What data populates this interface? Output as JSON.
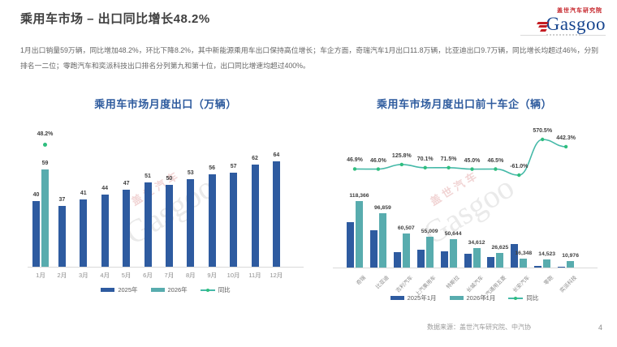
{
  "page": {
    "title": "乘用车市场 – 出口同比增长48.2%",
    "summary": "1月出口销量59万辆，同比增加48.2%，环比下降8.2%，其中新能源乘用车出口保持高位增长；车企方面，奇瑞汽车1月出口11.8万辆，比亚迪出口9.7万辆，同比增长均超过46%，分别排名一二位；零跑汽车和奕派科技出口排名分列第九和第十位，出口同比增速均超过400%。",
    "footer_source": "数据来源：盖世汽车研究院、中汽协",
    "page_number": "4"
  },
  "logo": {
    "institute": "盖世汽车研究院",
    "brand": "Gasgoo"
  },
  "watermark": {
    "cn": "盖世汽车",
    "en": "Gasgoo"
  },
  "colors": {
    "bar_2025": "#2e5ba0",
    "bar_2026": "#58acae",
    "line": "#45b9a8",
    "marker": "#2fbe7e",
    "chart_title": "#2e5b9e"
  },
  "chart_data": [
    {
      "type": "bar",
      "title": "乘用车市场月度出口（万辆）",
      "categories": [
        "1月",
        "2月",
        "3月",
        "4月",
        "5月",
        "6月",
        "7月",
        "8月",
        "9月",
        "10月",
        "11月",
        "12月"
      ],
      "series": [
        {
          "name": "2025年",
          "type": "bar",
          "color": "#2e5ba0",
          "values": [
            40,
            37,
            41,
            44,
            47,
            51,
            50,
            53,
            56,
            57,
            62,
            64
          ],
          "labels": [
            "40",
            "37",
            "41",
            "44",
            "47",
            "51",
            "50",
            "53",
            "56",
            "57",
            "62",
            "64"
          ]
        },
        {
          "name": "2026年",
          "type": "bar",
          "color": "#58acae",
          "values": [
            59,
            null,
            null,
            null,
            null,
            null,
            null,
            null,
            null,
            null,
            null,
            null
          ],
          "labels": [
            "59"
          ]
        },
        {
          "name": "同比",
          "type": "line",
          "color": "#2fbe7e",
          "values_pct": [
            48.2,
            null,
            null,
            null,
            null,
            null,
            null,
            null,
            null,
            null,
            null,
            null
          ],
          "labels": [
            "48.2%"
          ]
        }
      ],
      "ylim": [
        0,
        70
      ],
      "grid": false,
      "legend_position": "bottom"
    },
    {
      "type": "bar",
      "title": "乘用车市场月度出口前十车企（辆）",
      "categories": [
        "奇瑞",
        "比亚迪",
        "吉利汽车",
        "上汽乘用车",
        "特斯拉",
        "长城汽车",
        "上汽通用五菱",
        "长安汽车",
        "零跑",
        "奕派科技"
      ],
      "series": [
        {
          "name": "2025年1月",
          "type": "bar",
          "color": "#2e5ba0",
          "estimated_from_pixels": true,
          "values": [
            80600,
            66300,
            26800,
            32300,
            29500,
            23900,
            18200,
            41900,
            2200,
            2000
          ]
        },
        {
          "name": "2026年1月",
          "type": "bar",
          "color": "#58acae",
          "values": [
            118366,
            96859,
            60507,
            55009,
            50644,
            34612,
            26625,
            16348,
            14523,
            10976
          ],
          "labels": [
            "118,366",
            "96,859",
            "60,507",
            "55,009",
            "50,644",
            "34,612",
            "26,625",
            "16,348",
            "14,523",
            "10,976"
          ]
        },
        {
          "name": "同比",
          "type": "line",
          "color": "#45b9a8",
          "values_pct": [
            46.9,
            46.0,
            125.8,
            70.1,
            71.5,
            45.0,
            46.5,
            -61.0,
            570.5,
            442.3
          ],
          "labels": [
            "46.9%",
            "46.0%",
            "125.8%",
            "70.1%",
            "71.5%",
            "45.0%",
            "46.5%",
            "-61.0%",
            "570.5%",
            "442.3%"
          ]
        }
      ],
      "grid": false,
      "legend_position": "bottom"
    }
  ]
}
